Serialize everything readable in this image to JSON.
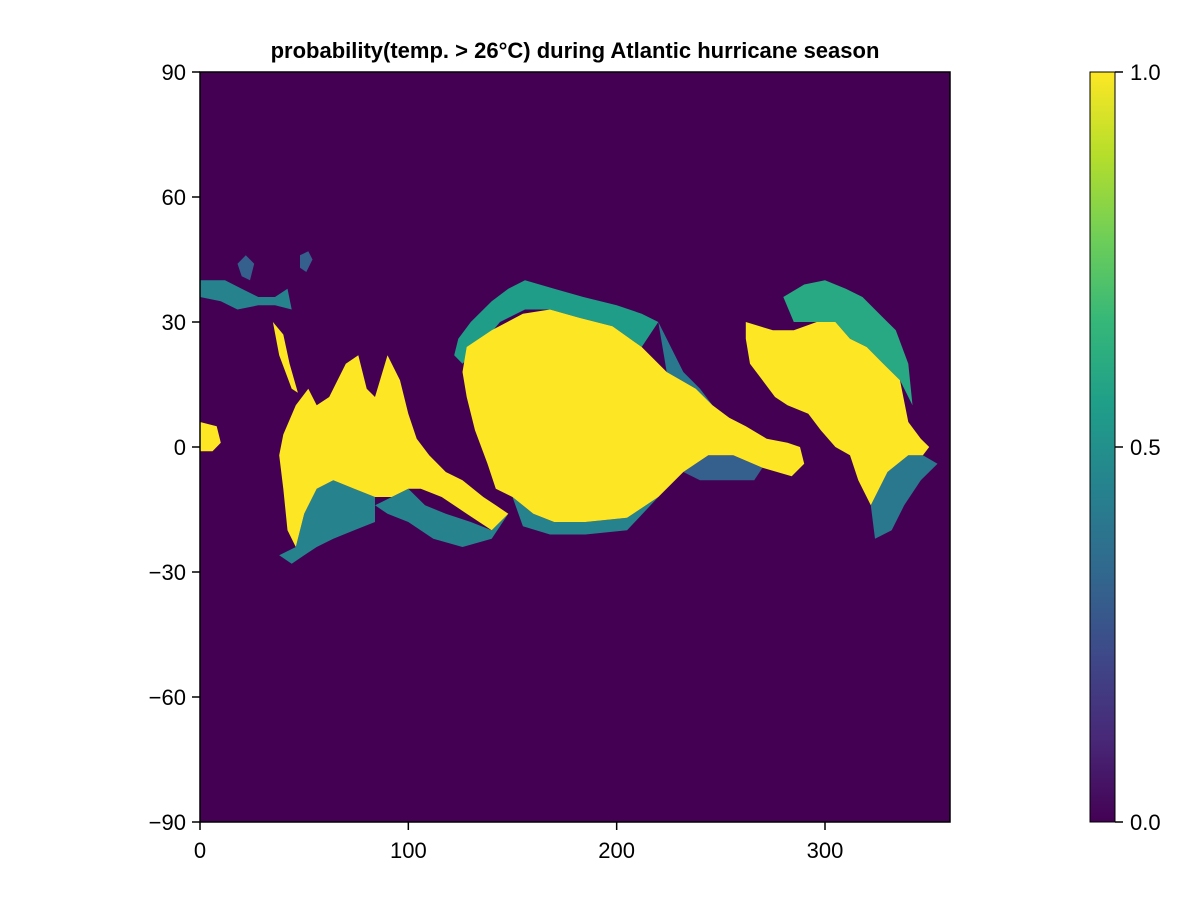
{
  "chart_data": {
    "type": "heatmap",
    "title": "probability(temp. > 26°C) during Atlantic hurricane season",
    "xlabel": "",
    "ylabel": "",
    "xlim": [
      0,
      360
    ],
    "ylim": [
      -90,
      90
    ],
    "x_ticks": [
      0,
      100,
      200,
      300
    ],
    "x_tick_labels": [
      "0",
      "100",
      "200",
      "300"
    ],
    "y_ticks": [
      90,
      60,
      30,
      0,
      -30,
      -60,
      -90
    ],
    "y_tick_labels": [
      "90",
      "60",
      "30",
      "0",
      "−30",
      "−60",
      "−90"
    ],
    "grid": false,
    "background_value": 0.0,
    "colormap": "viridis",
    "colormap_stops": [
      "#440154",
      "#482878",
      "#3e4989",
      "#31688e",
      "#26828e",
      "#1f9e89",
      "#35b779",
      "#6ece58",
      "#b5de2b",
      "#fde725"
    ],
    "colorbar": {
      "range": [
        0.0,
        1.0
      ],
      "ticks": [
        0.0,
        0.5,
        1.0
      ],
      "tick_labels": [
        "0.0",
        "0.5",
        "1.0"
      ]
    },
    "regions": [
      {
        "value": 1.0,
        "points": [
          [
            155,
            32
          ],
          [
            168,
            33
          ],
          [
            182,
            31
          ],
          [
            198,
            29
          ],
          [
            212,
            24
          ],
          [
            224,
            18
          ],
          [
            238,
            14
          ],
          [
            246,
            10
          ],
          [
            254,
            7
          ],
          [
            262,
            5
          ],
          [
            272,
            2
          ],
          [
            282,
            1
          ],
          [
            288,
            0
          ],
          [
            290,
            -4
          ],
          [
            284,
            -7
          ],
          [
            270,
            -5
          ],
          [
            256,
            -2
          ],
          [
            244,
            -2
          ],
          [
            232,
            -6
          ],
          [
            220,
            -12
          ],
          [
            205,
            -17
          ],
          [
            185,
            -18
          ],
          [
            170,
            -18
          ],
          [
            160,
            -16
          ],
          [
            150,
            -12
          ],
          [
            142,
            -10
          ],
          [
            138,
            -4
          ],
          [
            132,
            4
          ],
          [
            128,
            12
          ],
          [
            126,
            18
          ],
          [
            128,
            24
          ],
          [
            140,
            28
          ]
        ]
      },
      {
        "value": 1.0,
        "points": [
          [
            40,
            3
          ],
          [
            46,
            10
          ],
          [
            52,
            14
          ],
          [
            56,
            10
          ],
          [
            62,
            12
          ],
          [
            70,
            20
          ],
          [
            76,
            22
          ],
          [
            80,
            14
          ],
          [
            84,
            12
          ],
          [
            90,
            22
          ],
          [
            96,
            16
          ],
          [
            100,
            8
          ],
          [
            104,
            2
          ],
          [
            110,
            -2
          ],
          [
            118,
            -6
          ],
          [
            126,
            -8
          ],
          [
            136,
            -12
          ],
          [
            142,
            -14
          ],
          [
            148,
            -16
          ],
          [
            140,
            -20
          ],
          [
            128,
            -16
          ],
          [
            116,
            -12
          ],
          [
            106,
            -10
          ],
          [
            100,
            -10
          ],
          [
            92,
            -12
          ],
          [
            84,
            -12
          ],
          [
            74,
            -10
          ],
          [
            64,
            -8
          ],
          [
            56,
            -10
          ],
          [
            50,
            -16
          ],
          [
            46,
            -24
          ],
          [
            42,
            -20
          ],
          [
            40,
            -10
          ],
          [
            38,
            -2
          ]
        ]
      },
      {
        "value": 1.0,
        "points": [
          [
            262,
            30
          ],
          [
            275,
            28
          ],
          [
            285,
            28
          ],
          [
            296,
            30
          ],
          [
            305,
            30
          ],
          [
            312,
            26
          ],
          [
            320,
            24
          ],
          [
            328,
            20
          ],
          [
            336,
            16
          ],
          [
            340,
            6
          ],
          [
            346,
            2
          ],
          [
            350,
            0
          ],
          [
            347,
            -2
          ],
          [
            340,
            -2
          ],
          [
            330,
            -6
          ],
          [
            322,
            -14
          ],
          [
            316,
            -8
          ],
          [
            312,
            -2
          ],
          [
            305,
            0
          ],
          [
            298,
            4
          ],
          [
            292,
            8
          ],
          [
            282,
            10
          ],
          [
            276,
            12
          ],
          [
            270,
            16
          ],
          [
            264,
            20
          ],
          [
            262,
            26
          ]
        ]
      },
      {
        "value": 1.0,
        "points": [
          [
            0,
            6
          ],
          [
            8,
            5
          ],
          [
            10,
            1
          ],
          [
            6,
            -1
          ],
          [
            0,
            -1
          ]
        ]
      },
      {
        "value": 1.0,
        "points": [
          [
            35,
            30
          ],
          [
            40,
            27
          ],
          [
            43,
            20
          ],
          [
            47,
            13
          ],
          [
            44,
            14
          ],
          [
            38,
            22
          ]
        ]
      },
      {
        "value": 0.55,
        "points": [
          [
            156,
            40
          ],
          [
            148,
            38
          ],
          [
            140,
            35
          ],
          [
            130,
            30
          ],
          [
            124,
            26
          ],
          [
            122,
            22
          ],
          [
            126,
            20
          ],
          [
            134,
            24
          ],
          [
            144,
            30
          ],
          [
            156,
            33
          ]
        ]
      },
      {
        "value": 0.55,
        "points": [
          [
            156,
            40
          ],
          [
            170,
            38
          ],
          [
            184,
            36
          ],
          [
            200,
            34
          ],
          [
            212,
            32
          ],
          [
            220,
            30
          ],
          [
            212,
            24
          ],
          [
            198,
            29
          ],
          [
            182,
            31
          ],
          [
            168,
            33
          ],
          [
            156,
            33
          ]
        ]
      },
      {
        "value": 0.4,
        "points": [
          [
            220,
            30
          ],
          [
            226,
            24
          ],
          [
            232,
            18
          ],
          [
            240,
            14
          ],
          [
            246,
            10
          ],
          [
            238,
            14
          ],
          [
            224,
            18
          ]
        ]
      },
      {
        "value": 0.6,
        "points": [
          [
            280,
            36
          ],
          [
            290,
            39
          ],
          [
            300,
            40
          ],
          [
            310,
            38
          ],
          [
            318,
            36
          ],
          [
            326,
            32
          ],
          [
            334,
            28
          ],
          [
            340,
            20
          ],
          [
            342,
            10
          ],
          [
            336,
            16
          ],
          [
            328,
            20
          ],
          [
            320,
            24
          ],
          [
            312,
            26
          ],
          [
            305,
            30
          ],
          [
            296,
            30
          ],
          [
            285,
            30
          ]
        ]
      },
      {
        "value": 0.45,
        "points": [
          [
            100,
            -10
          ],
          [
            108,
            -14
          ],
          [
            118,
            -16
          ],
          [
            130,
            -18
          ],
          [
            140,
            -20
          ],
          [
            148,
            -16
          ],
          [
            140,
            -22
          ],
          [
            126,
            -24
          ],
          [
            112,
            -22
          ],
          [
            100,
            -18
          ],
          [
            90,
            -16
          ],
          [
            84,
            -14
          ],
          [
            92,
            -12
          ]
        ]
      },
      {
        "value": 0.45,
        "points": [
          [
            150,
            -12
          ],
          [
            160,
            -16
          ],
          [
            170,
            -18
          ],
          [
            185,
            -18
          ],
          [
            205,
            -17
          ],
          [
            220,
            -12
          ],
          [
            205,
            -20
          ],
          [
            185,
            -21
          ],
          [
            168,
            -21
          ],
          [
            155,
            -19
          ]
        ]
      },
      {
        "value": 0.45,
        "points": [
          [
            46,
            -24
          ],
          [
            50,
            -16
          ],
          [
            56,
            -10
          ],
          [
            64,
            -8
          ],
          [
            74,
            -10
          ],
          [
            84,
            -12
          ],
          [
            84,
            -18
          ],
          [
            74,
            -20
          ],
          [
            64,
            -22
          ],
          [
            56,
            -24
          ],
          [
            50,
            -26
          ],
          [
            44,
            -28
          ],
          [
            38,
            -26
          ]
        ]
      },
      {
        "value": 0.3,
        "points": [
          [
            232,
            -6
          ],
          [
            244,
            -2
          ],
          [
            256,
            -2
          ],
          [
            270,
            -5
          ],
          [
            266,
            -8
          ],
          [
            252,
            -8
          ],
          [
            240,
            -8
          ]
        ]
      },
      {
        "value": 0.4,
        "points": [
          [
            322,
            -14
          ],
          [
            330,
            -6
          ],
          [
            340,
            -2
          ],
          [
            347,
            -2
          ],
          [
            354,
            -4
          ],
          [
            346,
            -8
          ],
          [
            338,
            -14
          ],
          [
            332,
            -20
          ],
          [
            324,
            -22
          ]
        ]
      },
      {
        "value": 0.45,
        "points": [
          [
            0,
            40
          ],
          [
            12,
            40
          ],
          [
            20,
            38
          ],
          [
            28,
            36
          ],
          [
            36,
            36
          ],
          [
            42,
            38
          ],
          [
            44,
            33
          ],
          [
            36,
            34
          ],
          [
            28,
            34
          ],
          [
            18,
            33
          ],
          [
            10,
            35
          ],
          [
            0,
            36
          ]
        ]
      },
      {
        "value": 0.3,
        "points": [
          [
            18,
            44
          ],
          [
            22,
            46
          ],
          [
            26,
            44
          ],
          [
            24,
            40
          ],
          [
            20,
            41
          ]
        ]
      },
      {
        "value": 0.3,
        "points": [
          [
            48,
            46
          ],
          [
            52,
            47
          ],
          [
            54,
            45
          ],
          [
            51,
            42
          ],
          [
            48,
            43
          ]
        ]
      }
    ]
  }
}
